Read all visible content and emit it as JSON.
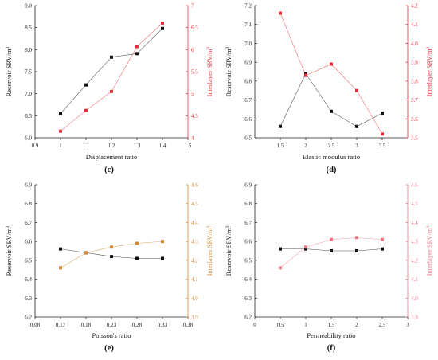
{
  "chart_data": [
    {
      "type": "line",
      "panel_label": "(c)",
      "xlabel": "Displacement ratio",
      "ylabel_left": "Reservoir SRV/m",
      "ylabel_right": "Interlayer SRV/m",
      "ylabel_sup": "3",
      "x": [
        1.0,
        1.1,
        1.2,
        1.3,
        1.4
      ],
      "xlim": [
        0.9,
        1.5
      ],
      "xticks": [
        0.9,
        1.0,
        1.1,
        1.2,
        1.3,
        1.4,
        1.5
      ],
      "xtick_labels": [
        "0.9",
        "1",
        "1.1",
        "1.2",
        "1.3",
        "1.4",
        "1.5"
      ],
      "ylim_left": [
        6.0,
        9.0
      ],
      "yticks_left": [
        "6.0",
        "6.5",
        "7.0",
        "7.5",
        "8.0",
        "8.5",
        "9.0"
      ],
      "ylim_right": [
        4,
        7
      ],
      "yticks_right": [
        "4",
        "4.5",
        "5",
        "5.5",
        "6",
        "6.5",
        "7"
      ],
      "series": [
        {
          "axis": "left",
          "color": "#111111",
          "marker": "square",
          "values": [
            6.55,
            7.2,
            7.83,
            7.91,
            8.48
          ]
        },
        {
          "axis": "right",
          "color": "#e8303a",
          "marker": "square",
          "values": [
            4.15,
            4.62,
            5.05,
            6.07,
            6.6
          ]
        }
      ]
    },
    {
      "type": "line",
      "panel_label": "(d)",
      "xlabel": "Elastic modulus ratio",
      "ylabel_left": "Reservoir SRV/m",
      "ylabel_right": "Interlayer SRV/m",
      "ylabel_sup": "3",
      "x": [
        1.5,
        2.0,
        2.5,
        3.0,
        3.5
      ],
      "xlim": [
        1.0,
        4.0
      ],
      "xticks": [
        1.5,
        2.0,
        2.5,
        3.0,
        3.5
      ],
      "xtick_labels": [
        "1.5",
        "2",
        "2.5",
        "3",
        "3.5"
      ],
      "ylim_left": [
        6.5,
        7.2
      ],
      "yticks_left": [
        "6.5",
        "6.6",
        "6.7",
        "6.8",
        "6.9",
        "7.0",
        "7.1",
        "7.2"
      ],
      "ylim_right": [
        3.5,
        4.2
      ],
      "yticks_right": [
        "3.5",
        "3.6",
        "3.7",
        "3.8",
        "3.9",
        "4.0",
        "4.1",
        "4.2"
      ],
      "series": [
        {
          "axis": "left",
          "color": "#111111",
          "marker": "square",
          "values": [
            6.56,
            6.84,
            6.64,
            6.56,
            6.63
          ]
        },
        {
          "axis": "right",
          "color": "#e8303a",
          "marker": "square",
          "values": [
            4.16,
            3.83,
            3.89,
            3.75,
            3.52
          ]
        }
      ]
    },
    {
      "type": "line",
      "panel_label": "(e)",
      "xlabel": "Poisson's ratio",
      "ylabel_left": "Reservoir SRV/m",
      "ylabel_right": "Interlayer SRV/m",
      "ylabel_sup": "3",
      "x": [
        0.13,
        0.18,
        0.23,
        0.28,
        0.33
      ],
      "xlim": [
        0.08,
        0.38
      ],
      "xticks": [
        0.08,
        0.13,
        0.18,
        0.23,
        0.28,
        0.33,
        0.38
      ],
      "xtick_labels": [
        "0.08",
        "0.13",
        "0.18",
        "0.23",
        "0.28",
        "0.33",
        "0.38"
      ],
      "ylim_left": [
        6.2,
        6.9
      ],
      "yticks_left": [
        "6.2",
        "6.3",
        "6.4",
        "6.5",
        "6.6",
        "6.7",
        "6.8",
        "6.9"
      ],
      "ylim_right": [
        3.9,
        4.6
      ],
      "yticks_right": [
        "3.9",
        "4.0",
        "4.1",
        "4.2",
        "4.3",
        "4.4",
        "4.5",
        "4.6"
      ],
      "series": [
        {
          "axis": "left",
          "color": "#111111",
          "marker": "square",
          "values": [
            6.56,
            6.54,
            6.52,
            6.51,
            6.51
          ]
        },
        {
          "axis": "right",
          "color": "#d08a36",
          "marker": "square",
          "values": [
            4.16,
            4.24,
            4.27,
            4.29,
            4.3
          ]
        }
      ]
    },
    {
      "type": "line",
      "panel_label": "(f)",
      "xlabel": "Permeability ratio",
      "ylabel_left": "Reservoir SRV/m",
      "ylabel_right": "Interlayer SRV/m",
      "ylabel_sup": "3",
      "x": [
        0.5,
        1.0,
        1.5,
        2.0,
        2.5
      ],
      "xlim": [
        0,
        3
      ],
      "xticks": [
        0,
        0.5,
        1.0,
        1.5,
        2.0,
        2.5,
        3.0
      ],
      "xtick_labels": [
        "0",
        "0.5",
        "1",
        "1.5",
        "2",
        "2.5",
        "3"
      ],
      "ylim_left": [
        6.2,
        6.9
      ],
      "yticks_left": [
        "6.2",
        "6.3",
        "6.4",
        "6.5",
        "6.6",
        "6.7",
        "6.8",
        "6.9"
      ],
      "ylim_right": [
        3.9,
        4.6
      ],
      "yticks_right": [
        "3.9",
        "4.0",
        "4.1",
        "4.2",
        "4.3",
        "4.4",
        "4.5",
        "4.6"
      ],
      "series": [
        {
          "axis": "left",
          "color": "#111111",
          "marker": "square",
          "values": [
            6.56,
            6.56,
            6.55,
            6.55,
            6.56
          ]
        },
        {
          "axis": "right",
          "color": "#e87a86",
          "marker": "square",
          "values": [
            4.16,
            4.27,
            4.31,
            4.32,
            4.31
          ]
        }
      ]
    }
  ]
}
